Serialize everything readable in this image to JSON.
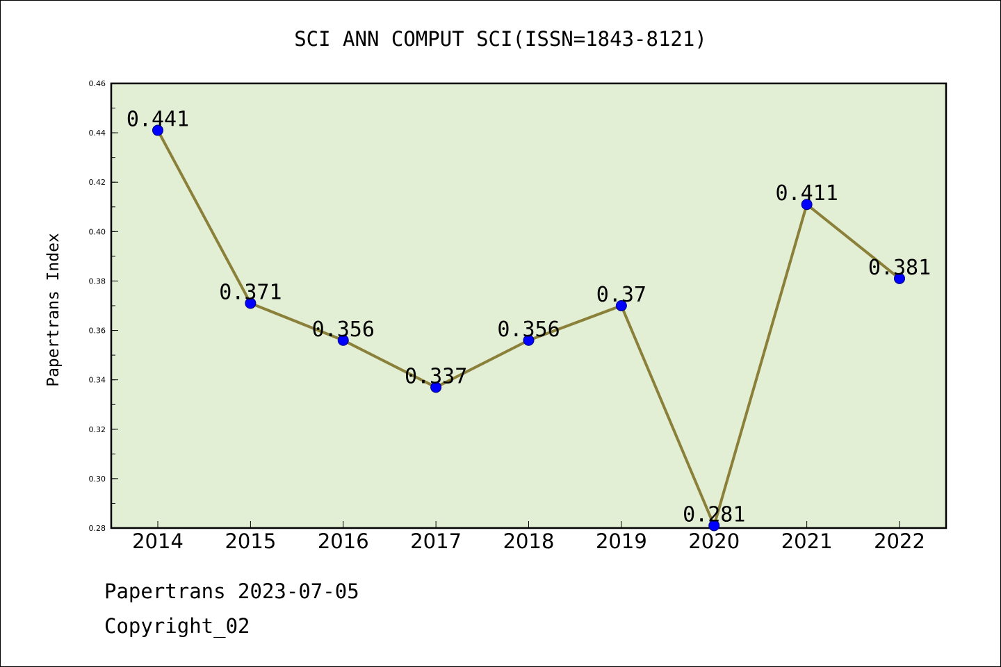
{
  "chart_data": {
    "type": "line",
    "title": "SCI ANN COMPUT SCI(ISSN=1843-8121)",
    "ylabel": "Papertrans Index",
    "xlabel": "",
    "categories": [
      "2014",
      "2015",
      "2016",
      "2017",
      "2018",
      "2019",
      "2020",
      "2021",
      "2022"
    ],
    "series": [
      {
        "values": [
          0.441,
          0.371,
          0.356,
          0.337,
          0.356,
          0.37,
          0.281,
          0.411,
          0.381
        ],
        "labels": [
          "0.441",
          "0.371",
          "0.356",
          "0.337",
          "0.356",
          "0.37",
          "0.281",
          "0.411",
          "0.381"
        ]
      }
    ],
    "ylim": [
      0.28,
      0.46
    ],
    "yticks": [
      "0.28",
      "0.30",
      "0.32",
      "0.34",
      "0.36",
      "0.38",
      "0.40",
      "0.42",
      "0.44",
      "0.46"
    ],
    "grid": false,
    "legend": "none",
    "colors": {
      "plot_background": "#e2efd5",
      "line": "#8b8039",
      "marker": "#0000ff",
      "marker_edge": "#00007a"
    }
  },
  "footer": {
    "line1": "Papertrans 2023-07-05",
    "line2": "Copyright_02"
  }
}
